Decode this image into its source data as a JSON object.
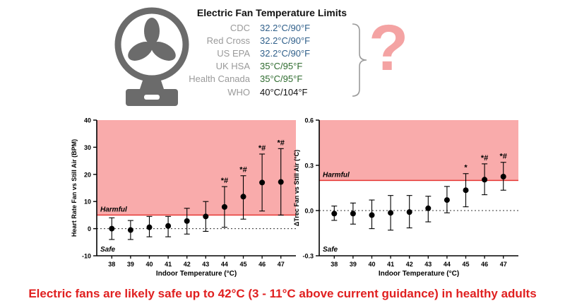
{
  "header": {
    "title": "Electric Fan Temperature Limits",
    "question_mark": "?",
    "limits": [
      {
        "org": "CDC",
        "value": "32.2°C/90°F",
        "color": "#2f5f8a"
      },
      {
        "org": "Red Cross",
        "value": "32.2°C/90°F",
        "color": "#2f5f8a"
      },
      {
        "org": "US EPA",
        "value": "32.2°C/90°F",
        "color": "#2f5f8a"
      },
      {
        "org": "UK HSA",
        "value": "35°C/95°F",
        "color": "#2e6b2e"
      },
      {
        "org": "Health Canada",
        "value": "35°C/95°F",
        "color": "#2e6b2e"
      },
      {
        "org": "WHO",
        "value": "40°C/104°F",
        "color": "#111111"
      }
    ]
  },
  "chart_data": [
    {
      "type": "scatter",
      "ylabel": "Heart Rate Fan vs Still Air (BPM)",
      "xlabel": "Indoor Temperature (°C)",
      "ylim": [
        -10,
        40
      ],
      "yticks": [
        -10,
        0,
        10,
        20,
        30,
        40
      ],
      "categories": [
        "38",
        "39",
        "40",
        "41",
        "42",
        "43",
        "44",
        "45",
        "46",
        "47"
      ],
      "values": [
        0,
        -0.5,
        0.5,
        1,
        2.8,
        4.5,
        8,
        11.8,
        17,
        17.2
      ],
      "err_low": [
        -4,
        -4,
        -3,
        -3,
        -2,
        -1,
        0.5,
        3.5,
        6.5,
        5
      ],
      "err_high": [
        4,
        3,
        4.5,
        4.5,
        7.5,
        10,
        15.5,
        19.5,
        27.5,
        29.5
      ],
      "markers": [
        "",
        "",
        "",
        "",
        "",
        "",
        "*#",
        "*#",
        "*#",
        "*#"
      ],
      "threshold": 5,
      "region_labels": {
        "harmful": "Harmful",
        "safe": "Safe"
      },
      "colors": {
        "harmful_fill": "#f9abab",
        "threshold_line": "#e53935"
      }
    },
    {
      "type": "scatter",
      "ylabel": "ΔTrec Fan vs Still Air (°C)",
      "xlabel": "Indoor Temperature (°C)",
      "ylim": [
        -0.3,
        0.6
      ],
      "yticks": [
        -0.3,
        0.0,
        0.3,
        0.6
      ],
      "categories": [
        "38",
        "39",
        "40",
        "41",
        "42",
        "43",
        "44",
        "45",
        "46",
        "47"
      ],
      "values": [
        -0.02,
        -0.02,
        -0.03,
        -0.015,
        -0.01,
        0.015,
        0.07,
        0.135,
        0.205,
        0.225
      ],
      "err_low": [
        -0.065,
        -0.09,
        -0.12,
        -0.13,
        -0.115,
        -0.075,
        -0.015,
        0.025,
        0.105,
        0.135
      ],
      "err_high": [
        0.03,
        0.05,
        0.07,
        0.1,
        0.1,
        0.095,
        0.16,
        0.245,
        0.31,
        0.32
      ],
      "markers": [
        "",
        "",
        "",
        "",
        "",
        "",
        "",
        "*",
        "*#",
        "*#"
      ],
      "threshold": 0.2,
      "region_labels": {
        "harmful": "Harmful",
        "safe": "Safe"
      },
      "colors": {
        "harmful_fill": "#f9abab",
        "threshold_line": "#e53935"
      }
    }
  ],
  "footer": {
    "text": "Electric fans are likely safe up to 42°C (3 - 11°C above current guidance) in healthy adults",
    "color": "#e02020"
  }
}
